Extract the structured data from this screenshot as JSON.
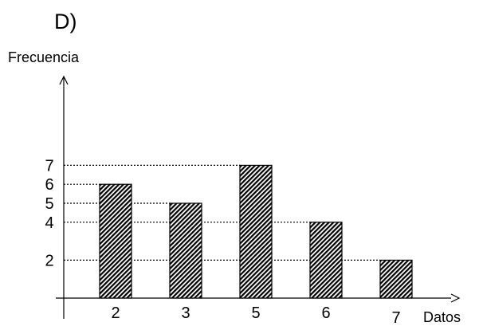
{
  "chart_data": {
    "type": "bar",
    "title": "D)",
    "ylabel": "Frecuencia",
    "xlabel": "Datos",
    "categories": [
      "2",
      "3",
      "5",
      "6",
      "7"
    ],
    "values": [
      6,
      5,
      7,
      4,
      2
    ],
    "yticks": [
      "2",
      "4",
      "5",
      "6",
      "7"
    ],
    "ylim": [
      0,
      13
    ],
    "grid": false,
    "bar_pattern": "diagonal-hatch",
    "colors": {
      "bar_fill": "#000000",
      "bar_background": "#ffffff",
      "axis": "#000000",
      "guide_line": "#000000"
    }
  }
}
